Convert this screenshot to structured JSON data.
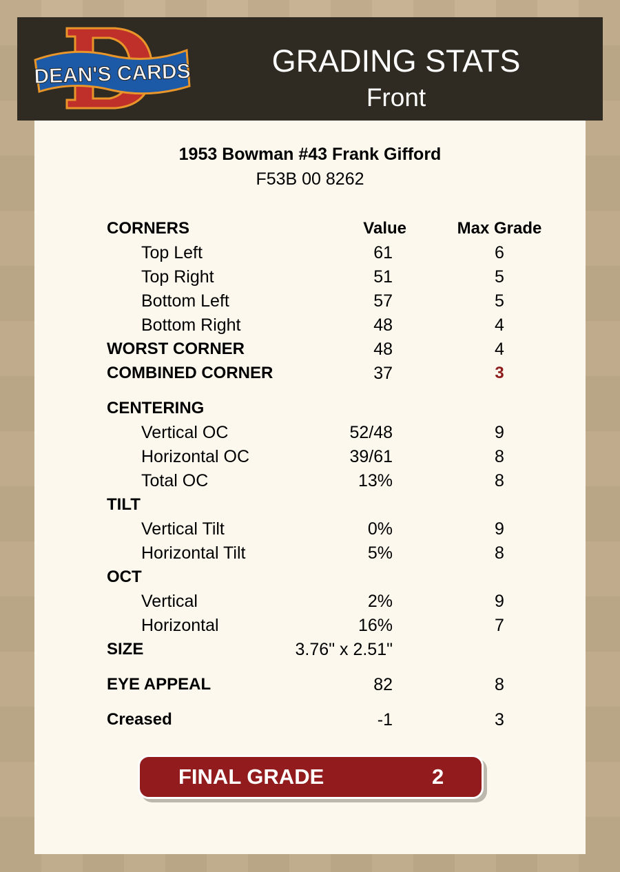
{
  "header": {
    "logo_text": "DEAN'S CARDS",
    "title": "GRADING STATS",
    "subtitle": "Front"
  },
  "card": {
    "title": "1953 Bowman #43 Frank Gifford",
    "serial": "F53B 00 8262"
  },
  "table": {
    "columns": [
      "CORNERS",
      "Value",
      "Max Grade"
    ],
    "rows": [
      {
        "label": "Top Left",
        "value": "61",
        "grade": "6",
        "style": "item"
      },
      {
        "label": "Top Right",
        "value": "51",
        "grade": "5",
        "style": "item"
      },
      {
        "label": "Bottom Left",
        "value": "57",
        "grade": "5",
        "style": "item"
      },
      {
        "label": "Bottom Right",
        "value": "48",
        "grade": "4",
        "style": "item"
      },
      {
        "label": "WORST CORNER",
        "value": "48",
        "grade": "4",
        "style": "bold"
      },
      {
        "label": "COMBINED CORNER",
        "value": "37",
        "grade": "3",
        "style": "bold",
        "highlight": true
      },
      {
        "label": "CENTERING",
        "value": "",
        "grade": "",
        "style": "section"
      },
      {
        "label": "Vertical OC",
        "value": "52/48",
        "grade": "9",
        "style": "item"
      },
      {
        "label": "Horizontal OC",
        "value": "39/61",
        "grade": "8",
        "style": "item"
      },
      {
        "label": "Total OC",
        "value": "13%",
        "grade": "8",
        "style": "item"
      },
      {
        "label": "TILT",
        "value": "",
        "grade": "",
        "style": "section"
      },
      {
        "label": "Vertical Tilt",
        "value": "0%",
        "grade": "9",
        "style": "item"
      },
      {
        "label": "Horizontal Tilt",
        "value": "5%",
        "grade": "8",
        "style": "item"
      },
      {
        "label": "OCT",
        "value": "",
        "grade": "",
        "style": "section"
      },
      {
        "label": "Vertical",
        "value": "2%",
        "grade": "9",
        "style": "item"
      },
      {
        "label": "Horizontal",
        "value": "16%",
        "grade": "7",
        "style": "item"
      },
      {
        "label": "SIZE",
        "value": "3.76\" x 2.51\"",
        "grade": "",
        "style": "bold"
      },
      {
        "label": "EYE APPEAL",
        "value": "82",
        "grade": "8",
        "style": "bold"
      },
      {
        "label": "Creased",
        "value": "-1",
        "grade": "3",
        "style": "bold"
      }
    ]
  },
  "final": {
    "label": "FINAL GRADE",
    "value": "2"
  },
  "colors": {
    "header_bg": "#2f2a22",
    "panel_bg": "#fcf8ee",
    "final_bg": "#921b1d",
    "highlight": "#8e1b1b",
    "background": "#c4b08e"
  }
}
